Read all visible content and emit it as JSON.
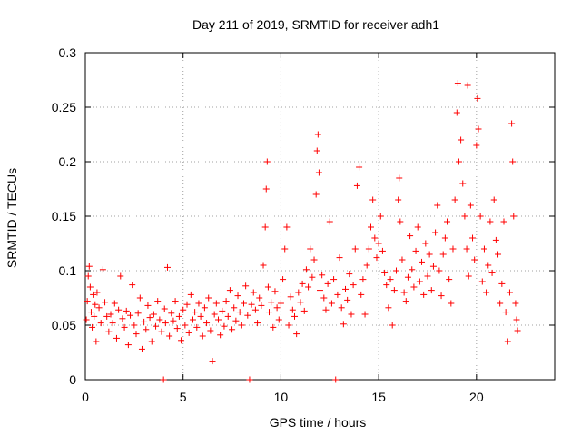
{
  "chart_data": {
    "type": "scatter",
    "title": "Day 211 of 2019, SRMTID for receiver adh1",
    "xlabel": "GPS time / hours",
    "ylabel": "SRMTID / TECUs",
    "xlim": [
      0,
      24
    ],
    "ylim": [
      0,
      0.3
    ],
    "x_ticks": [
      0,
      5,
      10,
      15,
      20
    ],
    "x_tick_labels": [
      "0",
      "5",
      "10",
      "15",
      "20"
    ],
    "y_ticks": [
      0,
      0.05,
      0.1,
      0.15,
      0.2,
      0.25,
      0.3
    ],
    "y_tick_labels": [
      "0",
      "0.05",
      "0.1",
      "0.15",
      "0.2",
      "0.25",
      "0.3"
    ],
    "grid": true,
    "marker": "+",
    "color": "#ff0000",
    "series": [
      {
        "name": "adh1",
        "points": [
          [
            0.05,
            0.055
          ],
          [
            0.1,
            0.072
          ],
          [
            0.15,
            0.095
          ],
          [
            0.2,
            0.104
          ],
          [
            0.25,
            0.085
          ],
          [
            0.3,
            0.062
          ],
          [
            0.35,
            0.048
          ],
          [
            0.4,
            0.078
          ],
          [
            0.45,
            0.058
          ],
          [
            0.5,
            0.069
          ],
          [
            0.55,
            0.035
          ],
          [
            0.6,
            0.08
          ],
          [
            0.7,
            0.066
          ],
          [
            0.8,
            0.052
          ],
          [
            0.9,
            0.101
          ],
          [
            1.0,
            0.071
          ],
          [
            1.1,
            0.058
          ],
          [
            1.2,
            0.044
          ],
          [
            1.3,
            0.06
          ],
          [
            1.4,
            0.052
          ],
          [
            1.5,
            0.07
          ],
          [
            1.6,
            0.038
          ],
          [
            1.7,
            0.064
          ],
          [
            1.8,
            0.095
          ],
          [
            1.9,
            0.056
          ],
          [
            2.0,
            0.048
          ],
          [
            2.1,
            0.063
          ],
          [
            2.2,
            0.032
          ],
          [
            2.3,
            0.059
          ],
          [
            2.4,
            0.087
          ],
          [
            2.5,
            0.05
          ],
          [
            2.6,
            0.042
          ],
          [
            2.7,
            0.061
          ],
          [
            2.8,
            0.075
          ],
          [
            2.9,
            0.028
          ],
          [
            3.0,
            0.053
          ],
          [
            3.1,
            0.046
          ],
          [
            3.2,
            0.068
          ],
          [
            3.3,
            0.057
          ],
          [
            3.4,
            0.035
          ],
          [
            3.5,
            0.06
          ],
          [
            3.6,
            0.049
          ],
          [
            3.7,
            0.072
          ],
          [
            3.8,
            0.055
          ],
          [
            3.9,
            0.044
          ],
          [
            4.0,
            0.0
          ],
          [
            4.05,
            0.065
          ],
          [
            4.1,
            0.052
          ],
          [
            4.2,
            0.103
          ],
          [
            4.3,
            0.04
          ],
          [
            4.4,
            0.061
          ],
          [
            4.5,
            0.054
          ],
          [
            4.6,
            0.072
          ],
          [
            4.7,
            0.047
          ],
          [
            4.8,
            0.058
          ],
          [
            4.9,
            0.036
          ],
          [
            5.0,
            0.064
          ],
          [
            5.1,
            0.05
          ],
          [
            5.2,
            0.069
          ],
          [
            5.3,
            0.043
          ],
          [
            5.4,
            0.078
          ],
          [
            5.5,
            0.055
          ],
          [
            5.6,
            0.062
          ],
          [
            5.7,
            0.048
          ],
          [
            5.8,
            0.07
          ],
          [
            5.9,
            0.058
          ],
          [
            6.0,
            0.04
          ],
          [
            6.1,
            0.066
          ],
          [
            6.2,
            0.052
          ],
          [
            6.3,
            0.075
          ],
          [
            6.4,
            0.045
          ],
          [
            6.5,
            0.017
          ],
          [
            6.6,
            0.06
          ],
          [
            6.7,
            0.07
          ],
          [
            6.8,
            0.055
          ],
          [
            6.9,
            0.041
          ],
          [
            7.0,
            0.063
          ],
          [
            7.1,
            0.049
          ],
          [
            7.2,
            0.072
          ],
          [
            7.3,
            0.058
          ],
          [
            7.4,
            0.082
          ],
          [
            7.5,
            0.046
          ],
          [
            7.6,
            0.066
          ],
          [
            7.7,
            0.054
          ],
          [
            7.8,
            0.077
          ],
          [
            7.9,
            0.062
          ],
          [
            8.0,
            0.05
          ],
          [
            8.1,
            0.07
          ],
          [
            8.2,
            0.086
          ],
          [
            8.3,
            0.059
          ],
          [
            8.4,
            0.0
          ],
          [
            8.5,
            0.069
          ],
          [
            8.6,
            0.08
          ],
          [
            8.7,
            0.064
          ],
          [
            8.8,
            0.052
          ],
          [
            8.9,
            0.075
          ],
          [
            9.0,
            0.068
          ],
          [
            9.1,
            0.105
          ],
          [
            9.2,
            0.14
          ],
          [
            9.25,
            0.175
          ],
          [
            9.3,
            0.2
          ],
          [
            9.35,
            0.085
          ],
          [
            9.4,
            0.062
          ],
          [
            9.5,
            0.071
          ],
          [
            9.6,
            0.048
          ],
          [
            9.7,
            0.081
          ],
          [
            9.8,
            0.066
          ],
          [
            9.9,
            0.055
          ],
          [
            10.0,
            0.07
          ],
          [
            10.1,
            0.092
          ],
          [
            10.2,
            0.12
          ],
          [
            10.3,
            0.14
          ],
          [
            10.4,
            0.05
          ],
          [
            10.5,
            0.076
          ],
          [
            10.6,
            0.064
          ],
          [
            10.7,
            0.058
          ],
          [
            10.8,
            0.042
          ],
          [
            10.9,
            0.08
          ],
          [
            11.0,
            0.071
          ],
          [
            11.1,
            0.088
          ],
          [
            11.2,
            0.063
          ],
          [
            11.3,
            0.101
          ],
          [
            11.4,
            0.085
          ],
          [
            11.5,
            0.12
          ],
          [
            11.6,
            0.094
          ],
          [
            11.7,
            0.11
          ],
          [
            11.8,
            0.17
          ],
          [
            11.85,
            0.21
          ],
          [
            11.9,
            0.225
          ],
          [
            11.95,
            0.19
          ],
          [
            12.0,
            0.082
          ],
          [
            12.1,
            0.096
          ],
          [
            12.2,
            0.075
          ],
          [
            12.3,
            0.064
          ],
          [
            12.4,
            0.088
          ],
          [
            12.5,
            0.145
          ],
          [
            12.6,
            0.07
          ],
          [
            12.7,
            0.092
          ],
          [
            12.8,
            0.0
          ],
          [
            12.9,
            0.078
          ],
          [
            13.0,
            0.112
          ],
          [
            13.1,
            0.066
          ],
          [
            13.2,
            0.051
          ],
          [
            13.3,
            0.083
          ],
          [
            13.4,
            0.073
          ],
          [
            13.5,
            0.097
          ],
          [
            13.6,
            0.06
          ],
          [
            13.7,
            0.087
          ],
          [
            13.8,
            0.12
          ],
          [
            13.9,
            0.178
          ],
          [
            14.0,
            0.195
          ],
          [
            14.1,
            0.078
          ],
          [
            14.2,
            0.092
          ],
          [
            14.3,
            0.06
          ],
          [
            14.4,
            0.105
          ],
          [
            14.5,
            0.12
          ],
          [
            14.6,
            0.14
          ],
          [
            14.7,
            0.165
          ],
          [
            14.8,
            0.13
          ],
          [
            14.9,
            0.112
          ],
          [
            15.0,
            0.125
          ],
          [
            15.1,
            0.15
          ],
          [
            15.2,
            0.118
          ],
          [
            15.3,
            0.098
          ],
          [
            15.4,
            0.087
          ],
          [
            15.5,
            0.066
          ],
          [
            15.6,
            0.092
          ],
          [
            15.7,
            0.05
          ],
          [
            15.8,
            0.082
          ],
          [
            15.9,
            0.1
          ],
          [
            16.0,
            0.165
          ],
          [
            16.05,
            0.185
          ],
          [
            16.1,
            0.145
          ],
          [
            16.2,
            0.11
          ],
          [
            16.3,
            0.08
          ],
          [
            16.4,
            0.072
          ],
          [
            16.5,
            0.094
          ],
          [
            16.6,
            0.132
          ],
          [
            16.7,
            0.101
          ],
          [
            16.8,
            0.085
          ],
          [
            16.9,
            0.118
          ],
          [
            17.0,
            0.14
          ],
          [
            17.1,
            0.09
          ],
          [
            17.2,
            0.108
          ],
          [
            17.3,
            0.078
          ],
          [
            17.4,
            0.125
          ],
          [
            17.5,
            0.095
          ],
          [
            17.6,
            0.115
          ],
          [
            17.7,
            0.082
          ],
          [
            17.8,
            0.104
          ],
          [
            17.9,
            0.135
          ],
          [
            18.0,
            0.16
          ],
          [
            18.1,
            0.1
          ],
          [
            18.2,
            0.077
          ],
          [
            18.3,
            0.115
          ],
          [
            18.4,
            0.13
          ],
          [
            18.5,
            0.145
          ],
          [
            18.6,
            0.092
          ],
          [
            18.7,
            0.07
          ],
          [
            18.8,
            0.12
          ],
          [
            18.9,
            0.165
          ],
          [
            19.0,
            0.245
          ],
          [
            19.05,
            0.272
          ],
          [
            19.1,
            0.2
          ],
          [
            19.2,
            0.22
          ],
          [
            19.3,
            0.18
          ],
          [
            19.4,
            0.15
          ],
          [
            19.5,
            0.12
          ],
          [
            19.55,
            0.27
          ],
          [
            19.6,
            0.095
          ],
          [
            19.7,
            0.16
          ],
          [
            19.8,
            0.13
          ],
          [
            19.9,
            0.11
          ],
          [
            20.0,
            0.215
          ],
          [
            20.05,
            0.258
          ],
          [
            20.1,
            0.23
          ],
          [
            20.2,
            0.15
          ],
          [
            20.3,
            0.09
          ],
          [
            20.4,
            0.12
          ],
          [
            20.5,
            0.08
          ],
          [
            20.6,
            0.105
          ],
          [
            20.7,
            0.145
          ],
          [
            20.8,
            0.098
          ],
          [
            20.9,
            0.165
          ],
          [
            21.0,
            0.128
          ],
          [
            21.1,
            0.115
          ],
          [
            21.2,
            0.07
          ],
          [
            21.3,
            0.088
          ],
          [
            21.4,
            0.145
          ],
          [
            21.5,
            0.062
          ],
          [
            21.6,
            0.035
          ],
          [
            21.7,
            0.08
          ],
          [
            21.8,
            0.235
          ],
          [
            21.85,
            0.2
          ],
          [
            21.9,
            0.15
          ],
          [
            22.0,
            0.07
          ],
          [
            22.05,
            0.055
          ],
          [
            22.1,
            0.045
          ]
        ]
      }
    ]
  }
}
